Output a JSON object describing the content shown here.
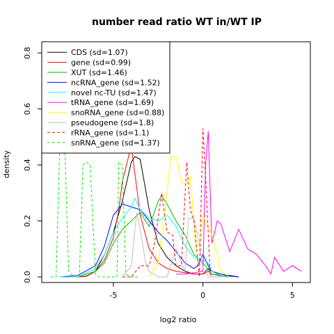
{
  "chart_data": {
    "type": "line",
    "title": "number read ratio WT in/WT IP",
    "xlabel": "log2 ratio",
    "ylabel": "density",
    "xlim": [
      -9.0,
      6.0
    ],
    "ylim": [
      -0.02,
      0.84
    ],
    "xticks": [
      -5,
      0,
      5
    ],
    "yticks": [
      0.0,
      0.2,
      0.4,
      0.6,
      0.8
    ],
    "xtick_labels": [
      "-5",
      "0",
      "5"
    ],
    "ytick_labels": [
      "0.0",
      "0.2",
      "0.4",
      "0.6",
      "0.8"
    ],
    "grid": false,
    "legend_position": "top-left",
    "series": [
      {
        "name": "CDS (sd=1.07)",
        "color": "#000000",
        "dashed": false,
        "x": [
          -8.0,
          -7.0,
          -6.5,
          -6.0,
          -5.5,
          -5.0,
          -4.5,
          -4.0,
          -3.8,
          -3.5,
          -3.0,
          -2.5,
          -2.0,
          -1.5,
          -1.0,
          -0.5,
          0.0,
          0.3,
          0.5,
          1.0,
          1.5,
          2.0
        ],
        "y": [
          0.0,
          0.0,
          0.002,
          0.02,
          0.08,
          0.16,
          0.27,
          0.41,
          0.43,
          0.42,
          0.24,
          0.12,
          0.07,
          0.04,
          0.02,
          0.01,
          0.01,
          0.03,
          0.02,
          0.005,
          0.003,
          0.0
        ]
      },
      {
        "name": "gene (sd=0.99)",
        "color": "#ff0000",
        "dashed": false,
        "x": [
          -8.0,
          -7.0,
          -6.5,
          -6.0,
          -5.5,
          -5.0,
          -4.7,
          -4.5,
          -4.0,
          -3.5,
          -3.0,
          -2.5,
          -2.0,
          -1.5,
          -1.0,
          -0.5,
          0.0,
          0.3,
          0.5,
          1.0,
          1.5
        ],
        "y": [
          0.0,
          0.0,
          0.003,
          0.02,
          0.06,
          0.14,
          0.24,
          0.34,
          0.47,
          0.22,
          0.1,
          0.05,
          0.03,
          0.02,
          0.015,
          0.01,
          0.01,
          0.02,
          0.01,
          0.005,
          0.0
        ]
      },
      {
        "name": "XUT (sd=1.46)",
        "color": "#00bb00",
        "dashed": false,
        "x": [
          -8.0,
          -7.0,
          -6.0,
          -5.5,
          -5.0,
          -4.5,
          -4.0,
          -3.5,
          -3.0,
          -2.5,
          -2.3,
          -2.0,
          -1.5,
          -1.0,
          -0.5,
          0.0,
          0.5,
          1.0,
          1.5
        ],
        "y": [
          0.0,
          0.0,
          0.02,
          0.05,
          0.12,
          0.17,
          0.2,
          0.23,
          0.18,
          0.27,
          0.29,
          0.26,
          0.2,
          0.15,
          0.08,
          0.05,
          0.01,
          0.003,
          0.0
        ]
      },
      {
        "name": "ncRNA_gene (sd=1.52)",
        "color": "#0000ff",
        "dashed": false,
        "x": [
          -8.0,
          -7.0,
          -6.0,
          -5.5,
          -5.0,
          -4.5,
          -4.0,
          -3.5,
          -3.0,
          -2.5,
          -2.0,
          -1.5,
          -1.0,
          -0.5,
          -0.3,
          0.0,
          0.3,
          0.5,
          1.0,
          1.5,
          2.0
        ],
        "y": [
          0.0,
          0.005,
          0.04,
          0.11,
          0.22,
          0.26,
          0.25,
          0.24,
          0.2,
          0.16,
          0.13,
          0.09,
          0.05,
          0.03,
          0.04,
          0.08,
          0.04,
          0.02,
          0.01,
          0.005,
          0.0
        ]
      },
      {
        "name": "novel nc-TU (sd=1.47)",
        "color": "#00ffff",
        "dashed": false,
        "x": [
          -8.0,
          -7.0,
          -6.0,
          -5.5,
          -5.0,
          -4.5,
          -4.0,
          -3.8,
          -3.5,
          -3.0,
          -2.5,
          -2.0,
          -1.5,
          -1.0,
          -0.5,
          0.0,
          0.3,
          0.5,
          1.0,
          1.5
        ],
        "y": [
          0.0,
          0.0,
          0.03,
          0.08,
          0.16,
          0.21,
          0.25,
          0.28,
          0.24,
          0.21,
          0.2,
          0.22,
          0.18,
          0.11,
          0.07,
          0.06,
          0.05,
          0.02,
          0.005,
          0.0
        ]
      },
      {
        "name": "tRNA_gene (sd=1.69)",
        "color": "#ff00ff",
        "dashed": false,
        "x": [
          -1.5,
          -1.0,
          -0.5,
          0.0,
          0.15,
          0.3,
          0.5,
          0.8,
          1.0,
          1.5,
          2.0,
          2.5,
          3.0,
          3.5,
          3.8,
          4.0,
          4.5,
          5.0,
          5.5
        ],
        "y": [
          0.01,
          0.01,
          0.015,
          0.02,
          0.4,
          0.52,
          0.12,
          0.2,
          0.19,
          0.09,
          0.17,
          0.1,
          0.08,
          0.04,
          0.01,
          0.07,
          0.02,
          0.04,
          0.02
        ]
      },
      {
        "name": "snoRNA_gene (sd=0.88)",
        "color": "#ffff00",
        "dashed": false,
        "x": [
          -3.0,
          -2.5,
          -2.0,
          -1.8,
          -1.5,
          -1.2,
          -1.0,
          -0.7,
          -0.4,
          -0.1,
          0.0,
          0.5,
          0.8,
          1.0,
          1.5
        ],
        "y": [
          0.0,
          0.05,
          0.3,
          0.43,
          0.43,
          0.34,
          0.33,
          0.36,
          0.1,
          0.14,
          0.22,
          0.15,
          0.08,
          0.02,
          0.0
        ]
      },
      {
        "name": "pseudogene (sd=1.8)",
        "color": "#bebebe",
        "dashed": false,
        "x": [
          -4.5,
          -4.0,
          -3.7,
          -3.5,
          -3.2,
          -3.0,
          -2.5,
          -2.0,
          -1.5,
          -1.0,
          -0.8,
          -0.5,
          -0.2,
          0.0,
          0.3,
          0.5,
          1.0
        ],
        "y": [
          0.0,
          0.04,
          0.23,
          0.17,
          0.05,
          0.02,
          0.0,
          0.0,
          0.1,
          0.02,
          0.21,
          0.21,
          0.12,
          0.03,
          0.0,
          0.0,
          0.0
        ]
      },
      {
        "name": "rRNA_gene (sd=1.1)",
        "color": "#ff0000",
        "dashed": true,
        "x": [
          -4.5,
          -4.0,
          -3.5,
          -3.0,
          -2.7,
          -2.3,
          -2.0,
          -1.7,
          -1.5,
          -1.2,
          -0.9,
          -0.7,
          -0.5,
          -0.2,
          0.0,
          0.2,
          0.4,
          0.6
        ],
        "y": [
          0.0,
          0.0,
          0.04,
          0.04,
          0.12,
          0.3,
          0.16,
          0.15,
          0.04,
          0.04,
          0.41,
          0.24,
          0.2,
          0.0,
          0.53,
          0.3,
          0.01,
          0.0
        ]
      },
      {
        "name": "snRNA_gene (sd=1.37)",
        "color": "#00ee00",
        "dashed": true,
        "x": [
          -8.5,
          -8.2,
          -8.0,
          -7.7,
          -7.5,
          -7.2,
          -6.9,
          -6.7,
          -6.5,
          -6.3,
          -6.0,
          -5.8,
          -5.5,
          -5.0,
          -4.8,
          -4.7,
          -4.5,
          -4.3,
          -4.0,
          -3.8,
          -3.7,
          -3.5
        ],
        "y": [
          0.0,
          0.0,
          0.45,
          0.44,
          0.02,
          0.0,
          0.0,
          0.4,
          0.41,
          0.4,
          0.01,
          0.0,
          0.0,
          0.0,
          0.0,
          0.41,
          0.4,
          0.01,
          0.0,
          0.0,
          0.0,
          0.0
        ]
      }
    ]
  }
}
